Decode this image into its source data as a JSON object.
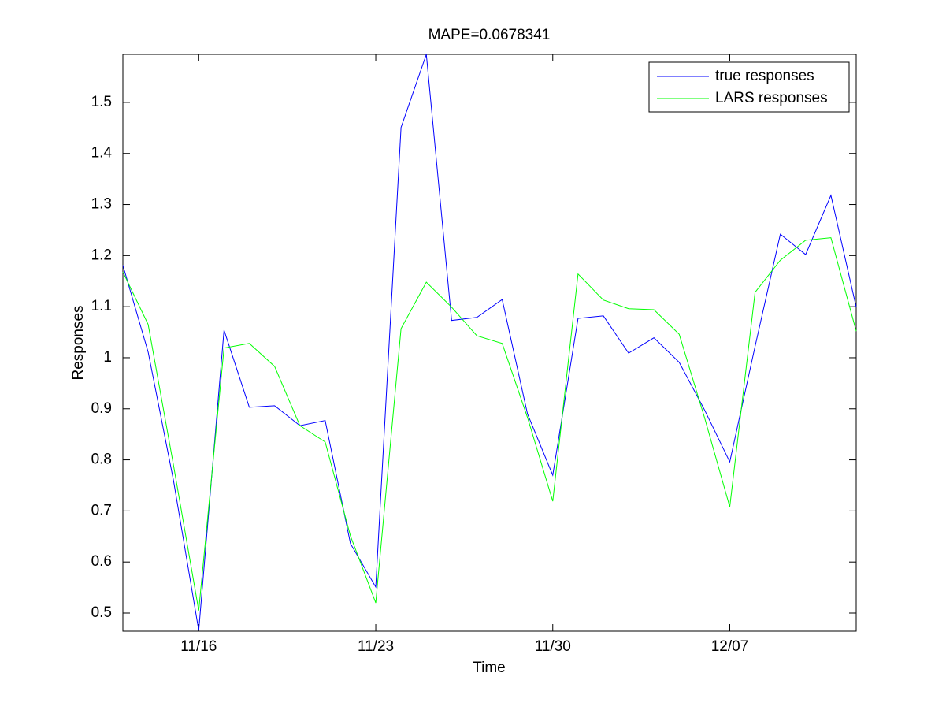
{
  "chart_data": {
    "type": "line",
    "title": "MAPE=0.0678341",
    "x_label": "Time",
    "y_label": "Responses",
    "categories": [
      null,
      null,
      null,
      "11/16",
      null,
      null,
      null,
      null,
      null,
      null,
      "11/23",
      null,
      null,
      null,
      null,
      null,
      null,
      "11/30",
      null,
      null,
      null,
      null,
      null,
      null,
      "12/07",
      null,
      null,
      null,
      null,
      null
    ],
    "series": [
      {
        "name": "true responses",
        "color": "#0000ff",
        "values": [
          1.181,
          1.011,
          0.76,
          0.466,
          1.054,
          0.903,
          0.906,
          0.867,
          0.877,
          0.636,
          0.551,
          1.451,
          1.594,
          1.073,
          1.079,
          1.114,
          0.89,
          0.77,
          1.077,
          1.082,
          1.009,
          1.039,
          0.991,
          0.898,
          0.796,
          1.022,
          1.242,
          1.202,
          1.318,
          1.099
        ]
      },
      {
        "name": "LARS responses",
        "color": "#00ff00",
        "values": [
          1.168,
          1.065,
          0.79,
          0.505,
          1.019,
          1.028,
          0.983,
          0.867,
          0.835,
          0.651,
          0.52,
          1.057,
          1.148,
          1.099,
          1.043,
          1.028,
          0.883,
          0.719,
          1.164,
          1.113,
          1.096,
          1.094,
          1.046,
          0.883,
          0.708,
          1.128,
          1.191,
          1.23,
          1.235,
          1.052
        ]
      }
    ],
    "ylim": [
      0.4645,
      1.594
    ],
    "yticks": [
      0.5,
      0.6,
      0.7,
      0.8,
      0.9,
      1,
      1.1,
      1.2,
      1.3,
      1.4,
      1.5
    ],
    "legend": "upper-right"
  }
}
